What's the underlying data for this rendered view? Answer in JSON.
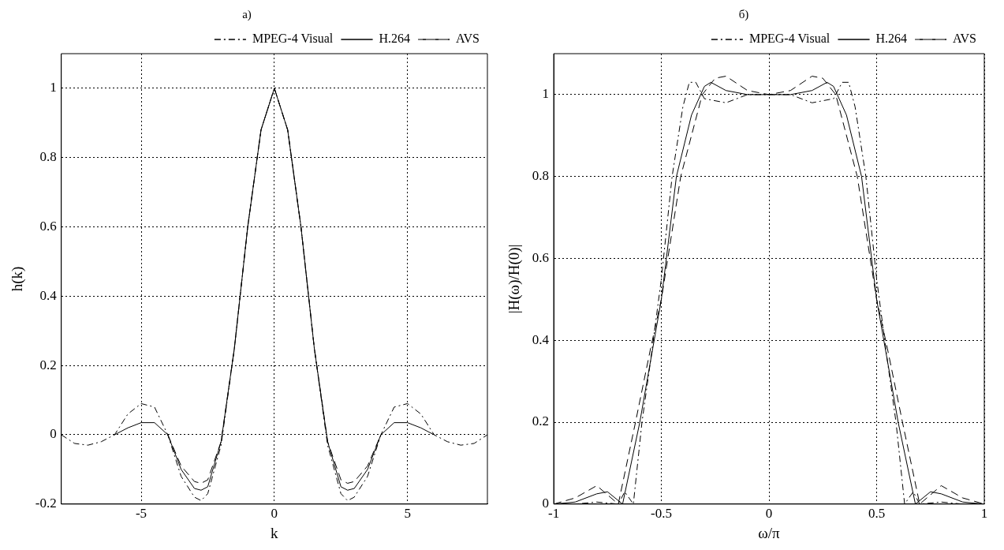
{
  "chart_data": [
    {
      "type": "line",
      "title": "a)",
      "xlabel": "k",
      "ylabel": "h(k)",
      "xlim": [
        -8,
        8
      ],
      "xticks": [
        -5,
        0,
        5
      ],
      "ylim": [
        -0.2,
        1.1
      ],
      "yticks": [
        -0.2,
        0,
        0.2,
        0.4,
        0.6,
        0.8,
        1
      ],
      "grid": true,
      "legend": "top right",
      "marker": "none",
      "series": [
        {
          "name": "MPEG-4 Visual",
          "color": "#000000",
          "line_style": "dashdot",
          "x": [
            -8,
            -7.5,
            -7,
            -6.5,
            -6,
            -5.5,
            -5,
            -4.5,
            -4,
            -3.5,
            -3,
            -2.75,
            -2.5,
            -2,
            -1.5,
            -1,
            -0.5,
            0,
            0.5,
            1,
            1.5,
            2,
            2.5,
            2.75,
            3,
            3.5,
            4,
            4.5,
            5,
            5.5,
            6,
            6.5,
            7,
            7.5,
            8
          ],
          "values": [
            0,
            -0.025,
            -0.03,
            -0.02,
            0,
            0.06,
            0.09,
            0.08,
            0,
            -0.12,
            -0.18,
            -0.19,
            -0.17,
            -0.03,
            0.25,
            0.6,
            0.88,
            1,
            0.88,
            0.6,
            0.25,
            -0.03,
            -0.17,
            -0.19,
            -0.18,
            -0.12,
            0,
            0.08,
            0.09,
            0.06,
            0,
            -0.02,
            -0.03,
            -0.025,
            0
          ]
        },
        {
          "name": "H.264",
          "color": "#000000",
          "line_style": "solid",
          "x": [
            -6,
            -5.5,
            -5,
            -4.5,
            -4,
            -3.5,
            -3,
            -2.75,
            -2.5,
            -2,
            -1.5,
            -1,
            -0.5,
            0,
            0.5,
            1,
            1.5,
            2,
            2.5,
            2.75,
            3,
            3.5,
            4,
            4.5,
            5,
            5.5,
            6
          ],
          "values": [
            0,
            0.02,
            0.035,
            0.035,
            0,
            -0.1,
            -0.155,
            -0.16,
            -0.15,
            -0.02,
            0.25,
            0.6,
            0.88,
            1,
            0.88,
            0.6,
            0.25,
            -0.02,
            -0.15,
            -0.16,
            -0.155,
            -0.1,
            0,
            0.035,
            0.035,
            0.02,
            0
          ]
        },
        {
          "name": "AVS",
          "color": "#000000",
          "line_style": "dashed",
          "x": [
            -4,
            -3.5,
            -3,
            -2.75,
            -2.5,
            -2,
            -1.5,
            -1,
            -0.5,
            0,
            0.5,
            1,
            1.5,
            2,
            2.5,
            2.75,
            3,
            3.5,
            4
          ],
          "values": [
            0,
            -0.09,
            -0.135,
            -0.14,
            -0.13,
            -0.02,
            0.25,
            0.6,
            0.88,
            1,
            0.88,
            0.6,
            0.25,
            -0.02,
            -0.13,
            -0.14,
            -0.135,
            -0.09,
            0
          ]
        }
      ]
    },
    {
      "type": "line",
      "title": "б)",
      "xlabel": "ω/π",
      "ylabel": "|H(ω)/H(0)|",
      "xlim": [
        -1,
        1
      ],
      "xticks": [
        -1,
        -0.5,
        0,
        0.5,
        1
      ],
      "ylim": [
        0,
        1.1
      ],
      "yticks": [
        0,
        0.2,
        0.4,
        0.6,
        0.8,
        1
      ],
      "grid": true,
      "legend": "top right",
      "marker": "none",
      "series": [
        {
          "name": "MPEG-4 Visual",
          "color": "#000000",
          "line_style": "dashdot",
          "x": [
            -1,
            -0.9,
            -0.8,
            -0.7,
            -0.67,
            -0.63,
            -0.59,
            -0.55,
            -0.5,
            -0.45,
            -0.4,
            -0.37,
            -0.34,
            -0.3,
            -0.2,
            -0.1,
            0,
            0.1,
            0.2,
            0.3,
            0.34,
            0.37,
            0.4,
            0.45,
            0.5,
            0.55,
            0.59,
            0.63,
            0.67,
            0.7,
            0.8,
            0.9,
            1
          ],
          "values": [
            0,
            0,
            0.005,
            0,
            0.03,
            0,
            0.2,
            0.35,
            0.55,
            0.8,
            0.97,
            1.03,
            1.03,
            0.99,
            0.98,
            1,
            1,
            1,
            0.98,
            0.99,
            1.03,
            1.03,
            0.97,
            0.8,
            0.55,
            0.35,
            0.2,
            0,
            0.03,
            0,
            0.005,
            0,
            0
          ]
        },
        {
          "name": "H.264",
          "color": "#000000",
          "line_style": "solid",
          "x": [
            -1,
            -0.9,
            -0.8,
            -0.75,
            -0.68,
            -0.6,
            -0.55,
            -0.5,
            -0.43,
            -0.36,
            -0.3,
            -0.27,
            -0.2,
            -0.1,
            0,
            0.1,
            0.2,
            0.27,
            0.3,
            0.36,
            0.43,
            0.5,
            0.55,
            0.6,
            0.68,
            0.75,
            0.8,
            0.9,
            1
          ],
          "values": [
            0,
            0.005,
            0.025,
            0.03,
            0,
            0.2,
            0.35,
            0.5,
            0.8,
            0.95,
            1.02,
            1.03,
            1.01,
            1,
            1,
            1,
            1.01,
            1.03,
            1.02,
            0.95,
            0.8,
            0.5,
            0.35,
            0.2,
            0,
            0.03,
            0.025,
            0.005,
            0
          ]
        },
        {
          "name": "AVS",
          "color": "#000000",
          "line_style": "dashed",
          "x": [
            -1,
            -0.9,
            -0.8,
            -0.7,
            -0.62,
            -0.55,
            -0.5,
            -0.41,
            -0.31,
            -0.25,
            -0.2,
            -0.1,
            0,
            0.1,
            0.2,
            0.25,
            0.31,
            0.41,
            0.5,
            0.55,
            0.62,
            0.7,
            0.8,
            0.9,
            1
          ],
          "values": [
            0,
            0.015,
            0.045,
            0,
            0.2,
            0.38,
            0.5,
            0.8,
            1.0,
            1.04,
            1.045,
            1.01,
            1,
            1.01,
            1.045,
            1.04,
            1.0,
            0.8,
            0.5,
            0.38,
            0.2,
            0,
            0.045,
            0.015,
            0
          ]
        }
      ]
    }
  ]
}
